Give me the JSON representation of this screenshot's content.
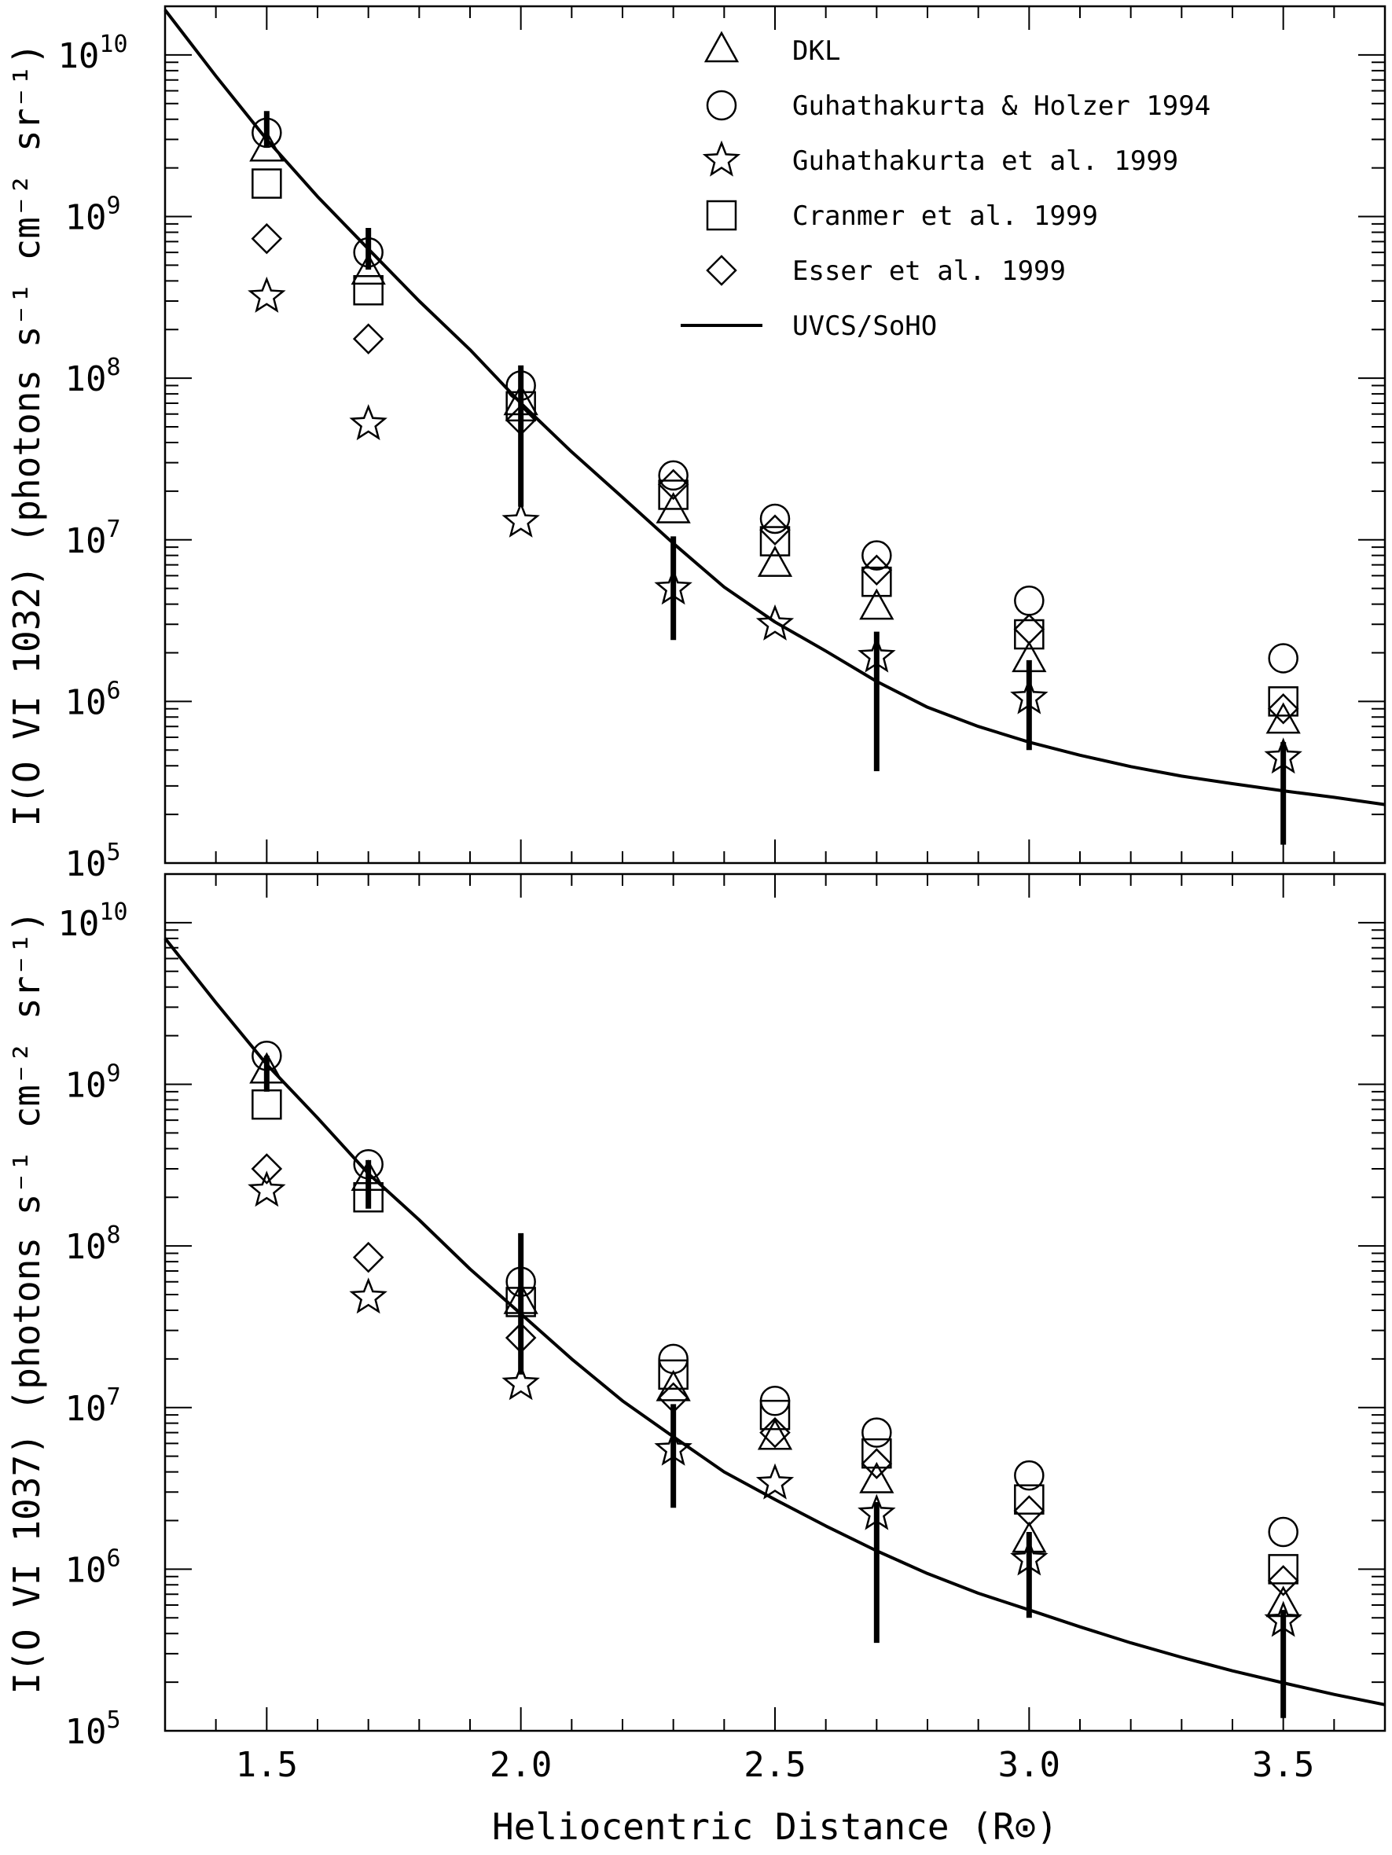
{
  "chart_data": [
    {
      "type": "scatter",
      "ylabel": "I(O VI 1032) (photons s⁻¹ cm⁻² sr⁻¹)",
      "xlabel": "",
      "xlim": [
        1.3,
        3.7
      ],
      "ylim": [
        100000,
        20000000000
      ],
      "y_scale": "log",
      "x_tick_labels": [],
      "y_ticks": [
        {
          "base": "10",
          "exp": "10",
          "value": 10000000000
        },
        {
          "base": "10",
          "exp": "9",
          "value": 1000000000
        },
        {
          "base": "10",
          "exp": "8",
          "value": 100000000
        },
        {
          "base": "10",
          "exp": "7",
          "value": 10000000
        },
        {
          "base": "10",
          "exp": "6",
          "value": 1000000
        },
        {
          "base": "10",
          "exp": "5",
          "value": 100000
        }
      ],
      "legend": {
        "placement": "top-right",
        "entries": [
          {
            "symbol": "triangle",
            "label": "DKL"
          },
          {
            "symbol": "circle",
            "label": "Guhathakurta & Holzer 1994"
          },
          {
            "symbol": "star",
            "label": "Guhathakurta et al. 1999"
          },
          {
            "symbol": "square",
            "label": "Cranmer et al. 1999"
          },
          {
            "symbol": "diamond",
            "label": "Esser et al. 1999"
          },
          {
            "symbol": "line",
            "label": "UVCS/SoHO"
          }
        ]
      },
      "series": [
        {
          "symbol": "triangle",
          "x": [
            1.5,
            1.7,
            2.0,
            2.3,
            2.5,
            2.7,
            3.0,
            3.5
          ],
          "y": [
            2600000000,
            450000000,
            70000000,
            15000000,
            7000000,
            3800000,
            1800000,
            750000
          ]
        },
        {
          "symbol": "circle",
          "x": [
            1.5,
            1.7,
            2.0,
            2.3,
            2.5,
            2.7,
            3.0,
            3.5
          ],
          "y": [
            3300000000,
            600000000,
            90000000,
            25000000,
            13500000,
            8000000,
            4200000,
            1850000
          ]
        },
        {
          "symbol": "star",
          "x": [
            1.5,
            1.7,
            2.0,
            2.3,
            2.5,
            2.7,
            3.0,
            3.5
          ],
          "y": [
            320000000,
            52000000,
            13000000,
            5000000,
            3000000,
            1900000,
            1050000,
            450000
          ]
        },
        {
          "symbol": "square",
          "x": [
            1.5,
            1.7,
            2.0,
            2.3,
            2.5,
            2.7,
            3.0,
            3.5
          ],
          "y": [
            1600000000,
            350000000,
            67000000,
            19000000,
            9800000,
            5500000,
            2600000,
            1000000
          ]
        },
        {
          "symbol": "diamond",
          "x": [
            1.5,
            1.7,
            2.0,
            2.3,
            2.5,
            2.7,
            3.0,
            3.5
          ],
          "y": [
            730000000,
            175000000,
            55000000,
            22000000,
            11500000,
            6500000,
            2800000,
            900000
          ]
        }
      ],
      "curve": {
        "name": "UVCS/SoHO",
        "x": [
          1.3,
          1.4,
          1.5,
          1.6,
          1.7,
          1.8,
          1.9,
          2.0,
          2.1,
          2.2,
          2.3,
          2.4,
          2.5,
          2.6,
          2.7,
          2.8,
          2.9,
          3.0,
          3.1,
          3.2,
          3.3,
          3.4,
          3.5,
          3.6,
          3.7
        ],
        "y": [
          19000000000,
          7400000000,
          3000000000,
          1330000000,
          630000000,
          300000000,
          150000000,
          70000000,
          35000000,
          18300000,
          9500000,
          5100000,
          3100000,
          2050000,
          1330000,
          920000,
          700000,
          560000,
          465000,
          395000,
          345000,
          310000,
          280000,
          255000,
          230000
        ]
      },
      "error_bars": [
        {
          "x": 1.5,
          "low": 2700000000,
          "high": 4500000000
        },
        {
          "x": 1.7,
          "low": 470000000,
          "high": 850000000
        },
        {
          "x": 2.0,
          "low": 16000000,
          "high": 120000000
        },
        {
          "x": 2.3,
          "low": 2400000,
          "high": 10500000
        },
        {
          "x": 2.7,
          "low": 370000,
          "high": 2700000
        },
        {
          "x": 3.0,
          "low": 500000,
          "high": 1800000
        },
        {
          "x": 3.5,
          "low": 130000,
          "high": 560000
        }
      ]
    },
    {
      "type": "scatter",
      "ylabel": "I(O VI 1037) (photons s⁻¹ cm⁻² sr⁻¹)",
      "xlabel": "Heliocentric Distance (R⊙)",
      "xlim": [
        1.3,
        3.7
      ],
      "ylim": [
        100000,
        20000000000
      ],
      "y_scale": "log",
      "x_tick_labels": [
        {
          "label": "1.5",
          "value": 1.5
        },
        {
          "label": "2.0",
          "value": 2.0
        },
        {
          "label": "2.5",
          "value": 2.5
        },
        {
          "label": "3.0",
          "value": 3.0
        },
        {
          "label": "3.5",
          "value": 3.5
        }
      ],
      "y_ticks": [
        {
          "base": "10",
          "exp": "10",
          "value": 10000000000
        },
        {
          "base": "10",
          "exp": "9",
          "value": 1000000000
        },
        {
          "base": "10",
          "exp": "8",
          "value": 100000000
        },
        {
          "base": "10",
          "exp": "7",
          "value": 10000000
        },
        {
          "base": "10",
          "exp": "6",
          "value": 1000000
        },
        {
          "base": "10",
          "exp": "5",
          "value": 100000
        }
      ],
      "series": [
        {
          "symbol": "triangle",
          "x": [
            1.5,
            1.7,
            2.0,
            2.3,
            2.5,
            2.7,
            3.0,
            3.5
          ],
          "y": [
            1200000000,
            260000000,
            45000000,
            13000000,
            6500000,
            3500000,
            1500000,
            600000
          ]
        },
        {
          "symbol": "circle",
          "x": [
            1.5,
            1.7,
            2.0,
            2.3,
            2.5,
            2.7,
            3.0,
            3.5
          ],
          "y": [
            1500000000,
            320000000,
            60000000,
            20000000,
            11000000,
            7000000,
            3800000,
            1700000
          ]
        },
        {
          "symbol": "star",
          "x": [
            1.5,
            1.7,
            2.0,
            2.3,
            2.5,
            2.7,
            3.0,
            3.5
          ],
          "y": [
            220000000,
            48000000,
            14000000,
            5500000,
            3400000,
            2200000,
            1150000,
            480000
          ]
        },
        {
          "symbol": "square",
          "x": [
            1.5,
            1.7,
            2.0,
            2.3,
            2.5,
            2.7,
            3.0,
            3.5
          ],
          "y": [
            750000000,
            200000000,
            45000000,
            16000000,
            9000000,
            5200000,
            2700000,
            1000000
          ]
        },
        {
          "symbol": "diamond",
          "x": [
            1.5,
            1.7,
            2.0,
            2.3,
            2.5,
            2.7,
            3.0,
            3.5
          ],
          "y": [
            300000000,
            85000000,
            27000000,
            11500000,
            7000000,
            4500000,
            2300000,
            850000
          ]
        }
      ],
      "curve": {
        "name": "UVCS/SoHO",
        "x": [
          1.3,
          1.4,
          1.5,
          1.6,
          1.7,
          1.8,
          1.9,
          2.0,
          2.1,
          2.2,
          2.3,
          2.4,
          2.5,
          2.6,
          2.7,
          2.8,
          2.9,
          3.0,
          3.1,
          3.2,
          3.3,
          3.4,
          3.5,
          3.6,
          3.7
        ],
        "y": [
          8000000000,
          3200000000,
          1330000000,
          620000000,
          280000000,
          145000000,
          72000000,
          38000000,
          20000000,
          11000000,
          6600000,
          4000000,
          2700000,
          1850000,
          1300000,
          940000,
          710000,
          560000,
          440000,
          350000,
          285000,
          235000,
          198000,
          168000,
          145000
        ]
      },
      "error_bars": [
        {
          "x": 1.5,
          "low": 900000000,
          "high": 1500000000
        },
        {
          "x": 1.7,
          "low": 170000000,
          "high": 340000000
        },
        {
          "x": 2.0,
          "low": 16000000,
          "high": 120000000
        },
        {
          "x": 2.3,
          "low": 2400000,
          "high": 10500000
        },
        {
          "x": 2.7,
          "low": 350000,
          "high": 2600000
        },
        {
          "x": 3.0,
          "low": 500000,
          "high": 1700000
        },
        {
          "x": 3.5,
          "low": 120000,
          "high": 560000
        }
      ]
    }
  ]
}
